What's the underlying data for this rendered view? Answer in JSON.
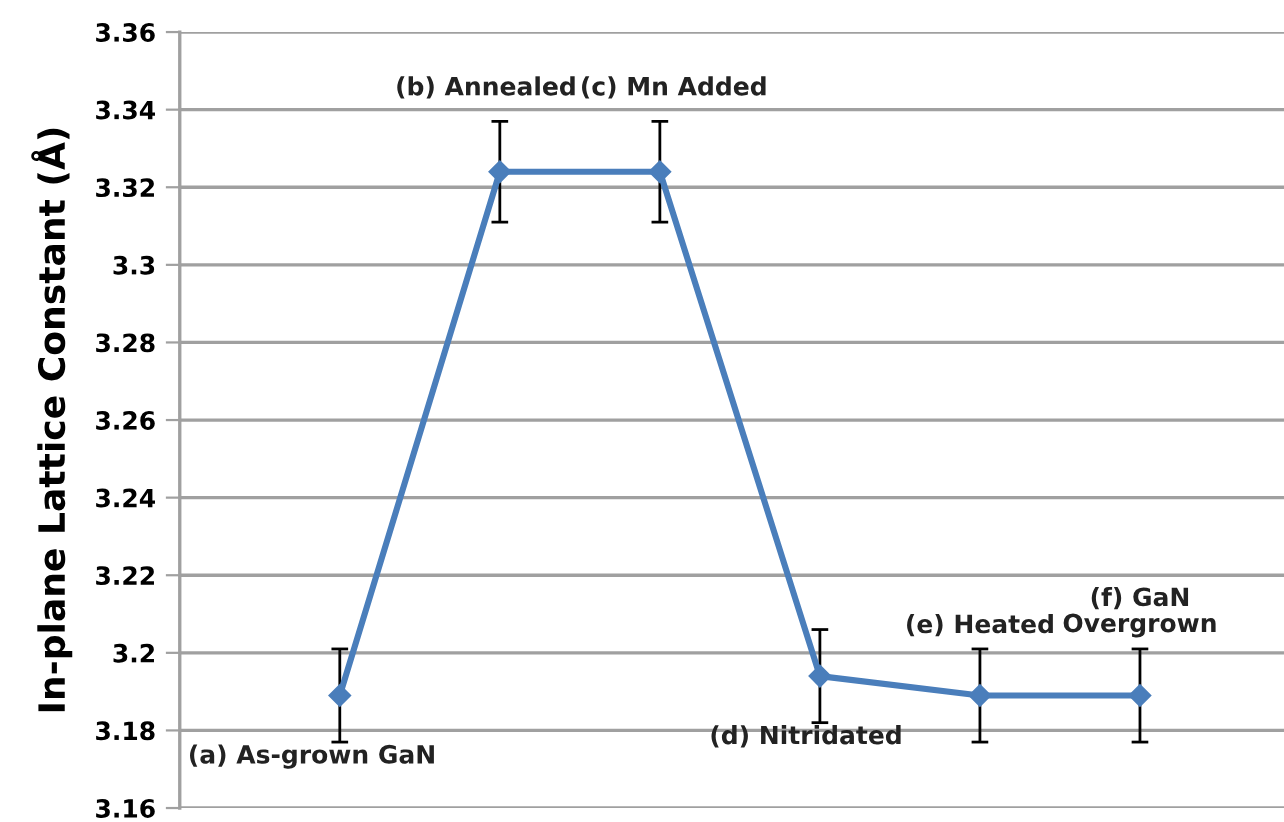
{
  "chart_data": {
    "type": "line",
    "ylabel": "In-plane Lattice Constant (Å)",
    "categories": [
      null,
      null,
      null,
      null,
      null,
      null
    ],
    "series": [
      {
        "color": "#4a7ebb",
        "values": [
          3.189,
          3.324,
          3.324,
          3.194,
          3.189,
          3.189
        ],
        "errors": [
          0.012,
          0.013,
          0.013,
          0.012,
          0.012,
          0.012
        ]
      }
    ],
    "annotations": [
      "(a) As-grown GaN",
      "(b) Annealed",
      "(c) Mn Added",
      "(d) Nitridated",
      "(e) Heated",
      "(f) GaN\nOvergrown"
    ],
    "ylim": [
      3.16,
      3.36
    ],
    "yticks": [
      3.16,
      3.18,
      {
        "value": 3.2,
        "label": "3.2"
      },
      3.22,
      3.24,
      3.26,
      3.28,
      {
        "value": 3.3,
        "label": "3.3"
      },
      3.32,
      3.34,
      3.36
    ],
    "grid": "y",
    "marker": "diamond",
    "line_style": "solid",
    "tick_labels": "y"
  }
}
